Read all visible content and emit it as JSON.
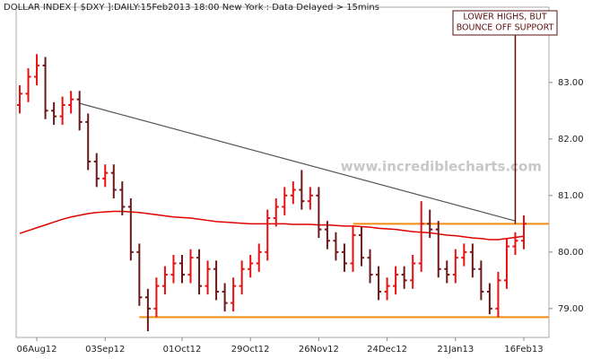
{
  "chart_data": {
    "type": "ohlc",
    "title": "DOLLAR INDEX [ $DXY ]:DAILY:15Feb2013 18:00 New York : Data Delayed > 15mins",
    "watermark": "www.incrediblecharts.com",
    "annotation": {
      "lines": [
        "LOWER HIGHS, BUT",
        "BOUNCE OFF SUPPORT"
      ],
      "color": "#5a0f0f",
      "at": 58,
      "y": 80.5
    },
    "categories": [
      null,
      null,
      "06Aug12",
      null,
      null,
      null,
      null,
      null,
      null,
      null,
      "03Sep12",
      null,
      null,
      null,
      null,
      null,
      null,
      null,
      null,
      "01Oct12",
      null,
      null,
      null,
      null,
      null,
      null,
      null,
      "29Oct12",
      null,
      null,
      null,
      null,
      null,
      null,
      null,
      "26Nov12",
      null,
      null,
      null,
      null,
      null,
      null,
      null,
      "24Dec12",
      null,
      null,
      null,
      null,
      null,
      null,
      null,
      "21Jan13",
      null,
      null,
      null,
      null,
      null,
      null,
      null,
      "16Feb13"
    ],
    "open": [
      82.6,
      82.8,
      83.1,
      83.3,
      82.5,
      82.4,
      82.6,
      82.7,
      82.3,
      81.6,
      81.3,
      81.4,
      81.1,
      80.8,
      80.0,
      79.2,
      79.0,
      79.4,
      79.6,
      79.8,
      79.6,
      79.9,
      79.4,
      79.7,
      79.3,
      79.1,
      79.4,
      79.7,
      79.8,
      80.0,
      80.6,
      80.8,
      81.0,
      81.1,
      80.9,
      81.0,
      80.4,
      80.2,
      80.0,
      79.8,
      80.3,
      79.9,
      79.6,
      79.3,
      79.4,
      79.6,
      79.5,
      79.8,
      80.5,
      80.4,
      79.7,
      79.6,
      79.9,
      80.0,
      79.7,
      79.3,
      79.0,
      79.5,
      80.1,
      80.2
    ],
    "high": [
      82.95,
      83.25,
      83.5,
      83.45,
      82.65,
      82.75,
      82.85,
      82.85,
      82.45,
      81.75,
      81.55,
      81.55,
      81.25,
      80.95,
      80.15,
      79.35,
      79.55,
      79.75,
      79.95,
      79.95,
      80.05,
      80.05,
      79.85,
      79.85,
      79.45,
      79.55,
      79.85,
      79.95,
      80.15,
      80.75,
      80.95,
      81.15,
      81.25,
      81.45,
      81.15,
      81.15,
      80.55,
      80.35,
      80.15,
      80.45,
      80.45,
      80.05,
      79.75,
      79.55,
      79.75,
      79.75,
      79.95,
      80.9,
      80.75,
      80.55,
      79.85,
      80.05,
      80.15,
      80.15,
      79.85,
      79.45,
      79.65,
      80.25,
      80.35,
      80.65
    ],
    "low": [
      82.45,
      82.65,
      82.95,
      82.35,
      82.25,
      82.25,
      82.45,
      82.15,
      81.45,
      81.15,
      81.15,
      80.95,
      80.65,
      79.85,
      79.05,
      78.6,
      78.85,
      79.25,
      79.45,
      79.45,
      79.45,
      79.25,
      79.25,
      79.15,
      78.95,
      78.95,
      79.25,
      79.55,
      79.65,
      79.85,
      80.45,
      80.65,
      80.85,
      80.75,
      80.75,
      80.25,
      80.05,
      79.85,
      79.65,
      79.65,
      79.75,
      79.45,
      79.15,
      79.15,
      79.25,
      79.35,
      79.35,
      79.65,
      80.25,
      79.55,
      79.45,
      79.45,
      79.75,
      79.55,
      79.15,
      78.9,
      78.85,
      79.35,
      79.95,
      80.05
    ],
    "close": [
      82.8,
      83.1,
      83.3,
      82.5,
      82.4,
      82.6,
      82.7,
      82.3,
      81.6,
      81.3,
      81.4,
      81.1,
      80.8,
      80.0,
      79.2,
      79.0,
      79.4,
      79.6,
      79.8,
      79.6,
      79.9,
      79.4,
      79.7,
      79.3,
      79.1,
      79.4,
      79.7,
      79.8,
      80.0,
      80.6,
      80.8,
      81.0,
      81.1,
      80.9,
      81.0,
      80.4,
      80.2,
      80.0,
      79.8,
      80.3,
      79.9,
      79.6,
      79.3,
      79.4,
      79.6,
      79.5,
      79.8,
      80.5,
      80.4,
      79.7,
      79.6,
      79.9,
      80.0,
      79.7,
      79.3,
      79.0,
      79.5,
      80.1,
      80.2,
      80.5
    ],
    "up_color": "#e81010",
    "down_color": "#6a1818",
    "moving_average": {
      "color": "#e00000",
      "values": [
        80.33,
        80.38,
        80.43,
        80.48,
        80.53,
        80.58,
        80.62,
        80.65,
        80.68,
        80.7,
        80.71,
        80.72,
        80.72,
        80.71,
        80.7,
        80.68,
        80.66,
        80.64,
        80.62,
        80.61,
        80.6,
        80.58,
        80.56,
        80.54,
        80.53,
        80.52,
        80.51,
        80.5,
        80.5,
        80.5,
        80.5,
        80.5,
        80.49,
        80.49,
        80.49,
        80.48,
        80.48,
        80.47,
        80.46,
        80.46,
        80.45,
        80.44,
        80.42,
        80.41,
        80.4,
        80.38,
        80.36,
        80.35,
        80.34,
        80.32,
        80.3,
        80.29,
        80.27,
        80.25,
        80.24,
        80.22,
        80.22,
        80.24,
        80.26,
        80.28
      ]
    },
    "trendline": {
      "color": "#555555",
      "x": [
        7,
        58
      ],
      "y": [
        82.63,
        80.55
      ]
    },
    "support_lines": [
      {
        "color": "#f08c10",
        "y": 80.5,
        "start": 39
      },
      {
        "color": "#f08c10",
        "y": 78.85,
        "start": 14
      }
    ],
    "ylim": [
      78.49,
      84.33
    ],
    "yticks": [
      {
        "value": 79,
        "label": "79.00"
      },
      {
        "value": 80,
        "label": "80.00"
      },
      {
        "value": 81,
        "label": "81.00"
      },
      {
        "value": 82,
        "label": "82.00"
      },
      {
        "value": 83,
        "label": "83.00"
      }
    ]
  }
}
